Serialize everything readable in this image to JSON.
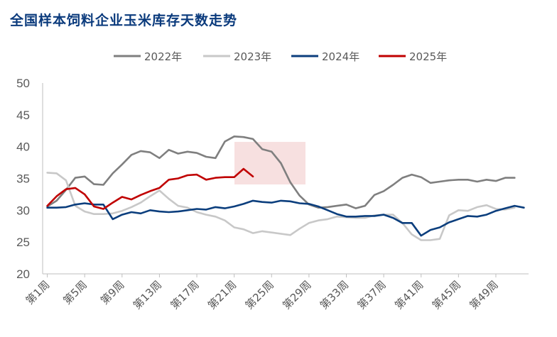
{
  "chart_data": {
    "type": "line",
    "title": "全国样本饲料企业玉米库存天数走势",
    "ylim": [
      20,
      50
    ],
    "yticks": [
      "20",
      "25",
      "30",
      "35",
      "40",
      "45",
      "50"
    ],
    "xlabels": [
      "第1周",
      "第5周",
      "第9周",
      "第13周",
      "第17周",
      "第21周",
      "第25周",
      "第29周",
      "第33周",
      "第37周",
      "第41周",
      "第45周",
      "第49周"
    ],
    "grid": false,
    "legend_position": "top",
    "series": [
      {
        "name": "2022年",
        "color": "#7f7f7f",
        "values": [
          30.6,
          31.5,
          33.2,
          35.1,
          35.3,
          34.1,
          34.0,
          35.8,
          37.2,
          38.7,
          39.3,
          39.1,
          38.2,
          39.5,
          38.9,
          39.2,
          39.0,
          38.4,
          38.2,
          40.8,
          41.6,
          41.5,
          41.2,
          39.6,
          39.2,
          37.4,
          34.4,
          32.3,
          30.9,
          30.4,
          30.5,
          30.7,
          30.9,
          30.3,
          30.7,
          32.4,
          33.0,
          34.0,
          35.1,
          35.6,
          35.2,
          34.3,
          34.5,
          34.7,
          34.8,
          34.8,
          34.5,
          34.8,
          34.6,
          35.1,
          35.1
        ]
      },
      {
        "name": "2023年",
        "color": "#c8c8c8",
        "values": [
          35.9,
          35.8,
          34.7,
          30.7,
          29.8,
          29.4,
          29.4,
          29.5,
          29.9,
          30.5,
          31.2,
          32.2,
          33.1,
          31.8,
          30.7,
          30.4,
          29.7,
          29.3,
          29.0,
          28.4,
          27.3,
          27.0,
          26.4,
          26.7,
          26.5,
          26.3,
          26.1,
          27.1,
          28.0,
          28.4,
          28.6,
          29.0,
          28.9,
          28.8,
          28.8,
          29.2,
          29.3,
          29.3,
          28.0,
          26.2,
          25.3,
          25.3,
          25.5,
          29.2,
          30.0,
          29.9,
          30.5,
          30.8,
          30.2,
          30.1,
          30.4
        ]
      },
      {
        "name": "2024年",
        "color": "#0b3e7d",
        "values": [
          30.4,
          30.4,
          30.5,
          30.9,
          31.1,
          30.9,
          30.9,
          28.6,
          29.3,
          29.7,
          29.5,
          30.0,
          29.8,
          29.7,
          29.8,
          30.0,
          30.2,
          30.1,
          30.5,
          30.3,
          30.6,
          31.0,
          31.5,
          31.3,
          31.2,
          31.5,
          31.4,
          31.1,
          31.0,
          30.6,
          30.0,
          29.4,
          29.0,
          29.0,
          29.1,
          29.1,
          29.3,
          28.8,
          28.0,
          28.0,
          26.0,
          26.9,
          27.3,
          28.1,
          28.6,
          29.1,
          29.0,
          29.3,
          29.9,
          30.3,
          30.7,
          30.4
        ]
      },
      {
        "name": "2025年",
        "color": "#c00000",
        "values": [
          30.7,
          32.2,
          33.3,
          33.5,
          32.5,
          30.6,
          30.2,
          31.2,
          32.1,
          31.7,
          32.4,
          33.0,
          33.5,
          34.8,
          35.0,
          35.5,
          35.6,
          34.8,
          35.1,
          35.2,
          35.2,
          36.5,
          35.3
        ]
      }
    ]
  }
}
